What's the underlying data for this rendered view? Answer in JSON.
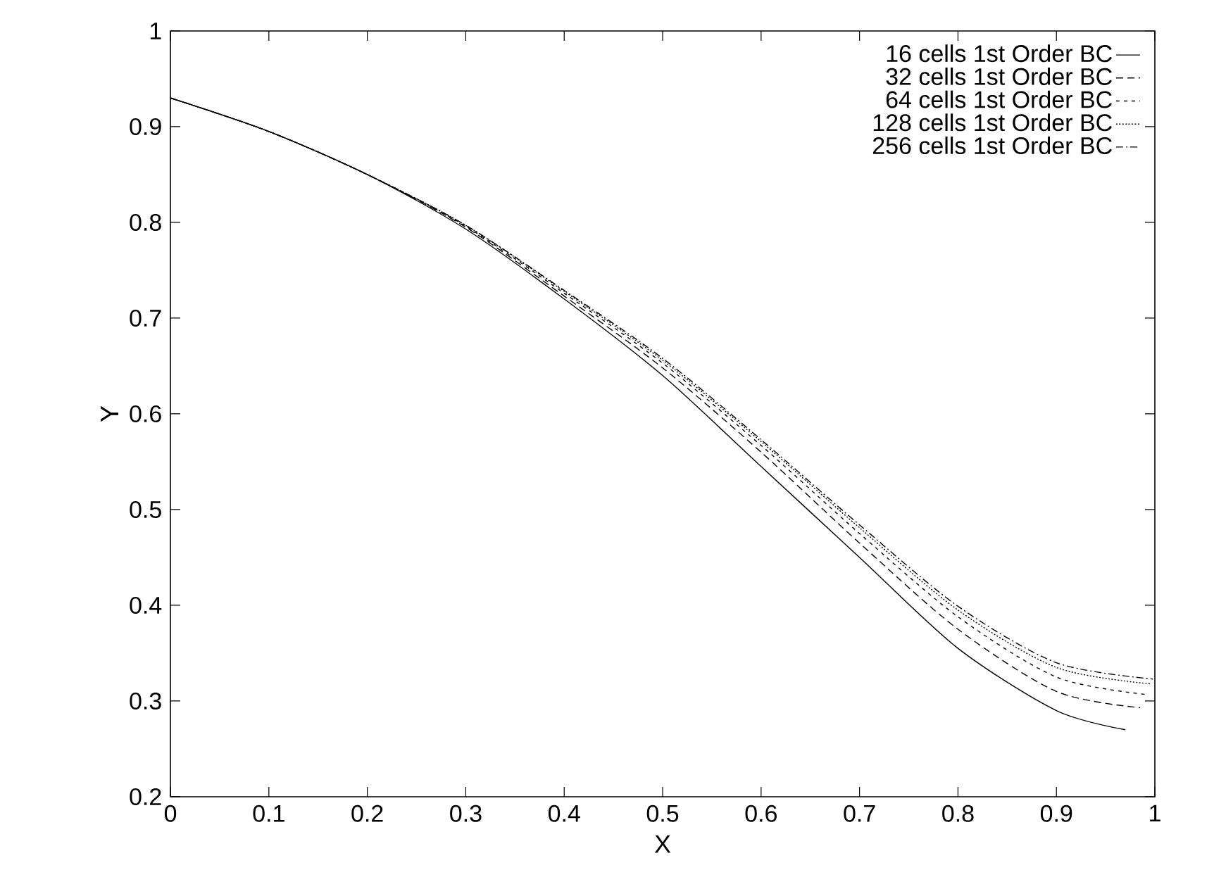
{
  "chart_data": {
    "type": "line",
    "xlabel": "X",
    "ylabel": "Y",
    "xlim": [
      0,
      1
    ],
    "ylim": [
      0.2,
      1
    ],
    "xticks": [
      0,
      0.1,
      0.2,
      0.3,
      0.4,
      0.5,
      0.6,
      0.7,
      0.8,
      0.9,
      1
    ],
    "yticks": [
      0.2,
      0.3,
      0.4,
      0.5,
      0.6,
      0.7,
      0.8,
      0.9,
      1
    ],
    "legend": "top right",
    "grid": false,
    "marker": "none",
    "series": [
      {
        "name": "16 cells 1st Order BC",
        "color": "#000000",
        "line_style": "solid",
        "x": [
          0,
          0.1,
          0.2,
          0.3,
          0.4,
          0.5,
          0.6,
          0.7,
          0.8,
          0.9,
          0.97
        ],
        "values": [
          0.93,
          0.895,
          0.85,
          0.793,
          0.72,
          0.64,
          0.545,
          0.45,
          0.355,
          0.29,
          0.27
        ]
      },
      {
        "name": "32 cells 1st Order BC",
        "color": "#000000",
        "line_style": "dashed",
        "x": [
          0,
          0.1,
          0.2,
          0.3,
          0.4,
          0.5,
          0.6,
          0.7,
          0.8,
          0.9,
          0.985
        ],
        "values": [
          0.93,
          0.895,
          0.85,
          0.795,
          0.723,
          0.648,
          0.56,
          0.465,
          0.375,
          0.31,
          0.293
        ]
      },
      {
        "name": "64 cells 1st Order BC",
        "color": "#000000",
        "line_style": "dotted",
        "x": [
          0,
          0.1,
          0.2,
          0.3,
          0.4,
          0.5,
          0.6,
          0.7,
          0.8,
          0.9,
          0.99
        ],
        "values": [
          0.93,
          0.895,
          0.85,
          0.796,
          0.726,
          0.653,
          0.567,
          0.475,
          0.388,
          0.325,
          0.307
        ]
      },
      {
        "name": "128 cells 1st Order BC",
        "color": "#000000",
        "line_style": "densely dotted",
        "x": [
          0,
          0.1,
          0.2,
          0.3,
          0.4,
          0.5,
          0.6,
          0.7,
          0.8,
          0.9,
          0.995
        ],
        "values": [
          0.93,
          0.895,
          0.85,
          0.797,
          0.728,
          0.656,
          0.571,
          0.481,
          0.395,
          0.335,
          0.318
        ]
      },
      {
        "name": "256 cells 1st Order BC",
        "color": "#000000",
        "line_style": "dash dot",
        "x": [
          0,
          0.1,
          0.2,
          0.3,
          0.4,
          0.5,
          0.6,
          0.7,
          0.8,
          0.9,
          0.998
        ],
        "values": [
          0.93,
          0.895,
          0.85,
          0.797,
          0.729,
          0.658,
          0.573,
          0.484,
          0.399,
          0.34,
          0.323
        ]
      }
    ]
  }
}
